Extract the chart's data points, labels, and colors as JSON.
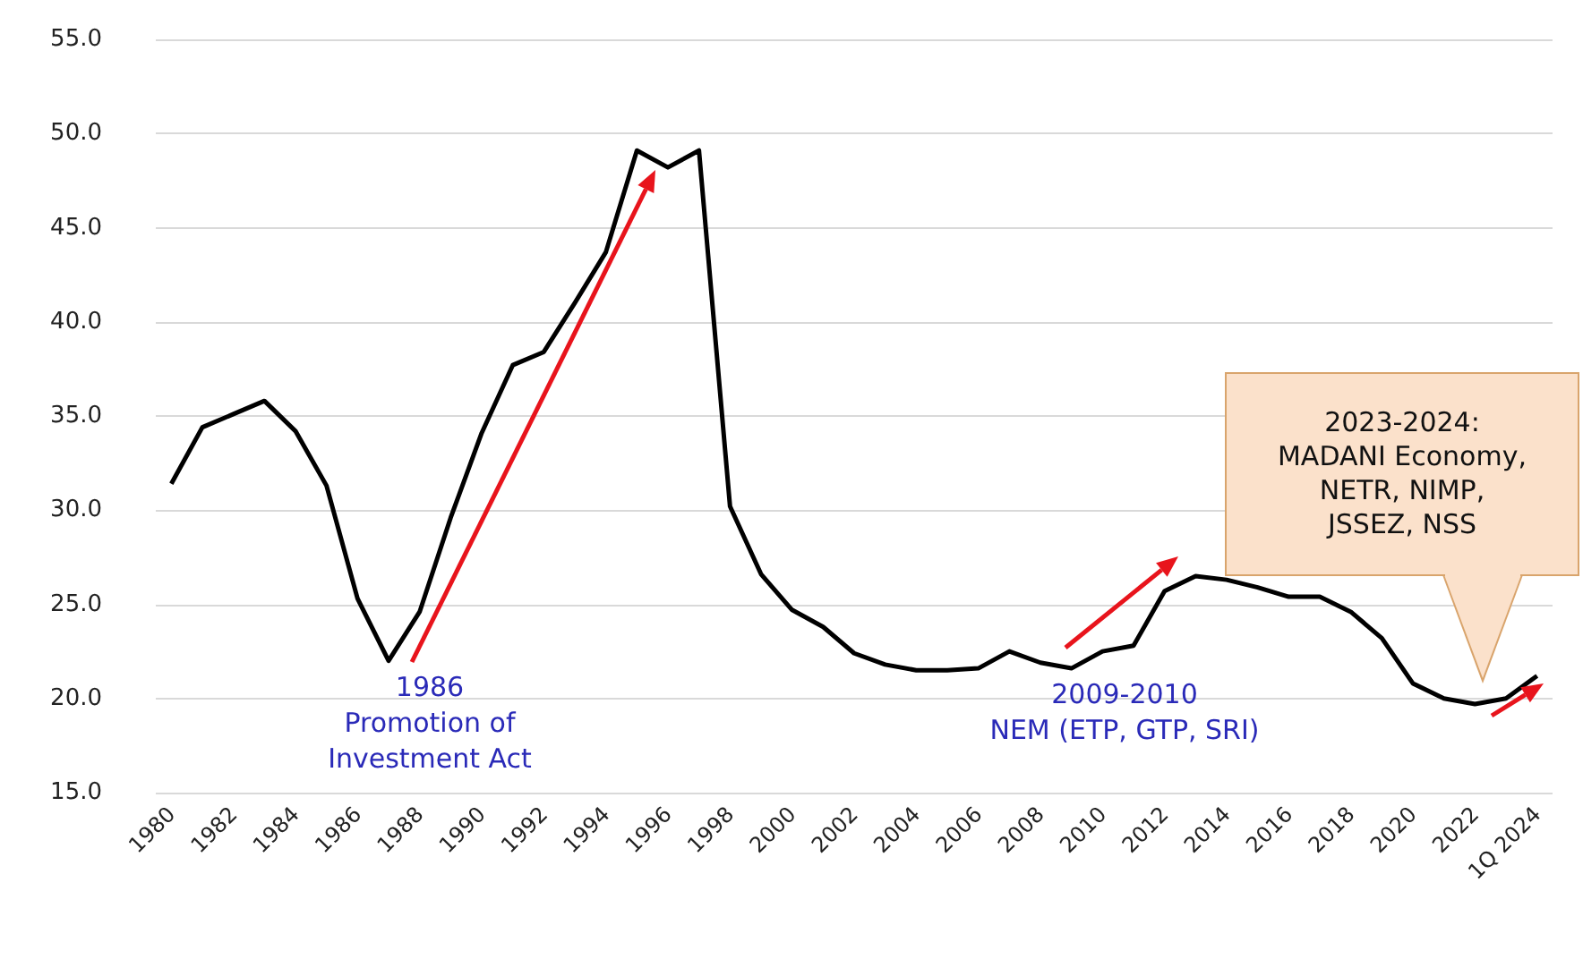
{
  "chart_data": {
    "type": "line",
    "categories": [
      "1980",
      null,
      "1982",
      null,
      "1984",
      null,
      "1986",
      null,
      "1988",
      null,
      "1990",
      null,
      "1992",
      null,
      "1994",
      null,
      "1996",
      null,
      "1998",
      null,
      "2000",
      null,
      "2002",
      null,
      "2004",
      null,
      "2006",
      null,
      "2008",
      null,
      "2010",
      null,
      "2012",
      null,
      "2014",
      null,
      "2016",
      null,
      "2018",
      null,
      "2020",
      null,
      "2022",
      null,
      "1Q 2024"
    ],
    "series": [
      {
        "color": "#000000",
        "values": [
          31.4,
          34.4,
          35.1,
          35.8,
          34.2,
          31.3,
          25.3,
          22.0,
          24.6,
          29.6,
          34.1,
          37.7,
          38.4,
          41.0,
          43.7,
          49.1,
          48.2,
          49.1,
          30.2,
          26.6,
          24.7,
          23.8,
          22.4,
          21.8,
          21.5,
          21.5,
          21.6,
          22.5,
          21.9,
          21.6,
          22.5,
          22.8,
          25.7,
          26.5,
          26.3,
          25.9,
          25.4,
          25.4,
          24.6,
          23.2,
          20.8,
          20.0,
          19.7,
          20.0,
          21.2
        ]
      }
    ],
    "ylim": [
      15,
      55
    ],
    "yticks": [
      {
        "value": 15,
        "label": "15.0"
      },
      {
        "value": 20,
        "label": "20.0"
      },
      {
        "value": 25,
        "label": "25.0"
      },
      {
        "value": 30,
        "label": "30.0"
      },
      {
        "value": 35,
        "label": "35.0"
      },
      {
        "value": 40,
        "label": "40.0"
      },
      {
        "value": 45,
        "label": "45.0"
      },
      {
        "value": 50,
        "label": "50.0"
      },
      {
        "value": 55,
        "label": "55.0"
      }
    ],
    "grid": "y",
    "marker": "none",
    "line_style": "solid",
    "annotations": [
      "1986\nPromotion of\nInvestment Act",
      "2009-2010\nNEM (ETP, GTP, SRI)",
      "2023-2024:\nMADANI Economy,\nNETR, NIMP,\nJSSEZ, NSS"
    ]
  }
}
